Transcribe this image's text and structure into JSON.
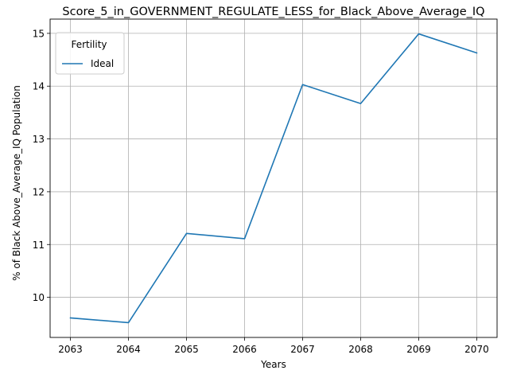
{
  "chart_data": {
    "type": "line",
    "title": "Score_5_in_GOVERNMENT_REGULATE_LESS_for_Black_Above_Average_IQ",
    "xlabel": "Years",
    "ylabel": "% of Black Above_Average_IQ Population",
    "x": [
      2063,
      2064,
      2065,
      2066,
      2067,
      2068,
      2069,
      2070
    ],
    "xlim": [
      2062.65,
      2070.35
    ],
    "ylim": [
      9.24,
      15.27
    ],
    "yticks": [
      10,
      11,
      12,
      13,
      14,
      15
    ],
    "grid": true,
    "legend": {
      "title": "Fertility",
      "placement": "top-left"
    },
    "series": [
      {
        "name": "Ideal",
        "color": "#1f77b4",
        "values": [
          9.61,
          9.52,
          11.21,
          11.11,
          14.03,
          13.67,
          14.99,
          14.63
        ]
      }
    ]
  }
}
